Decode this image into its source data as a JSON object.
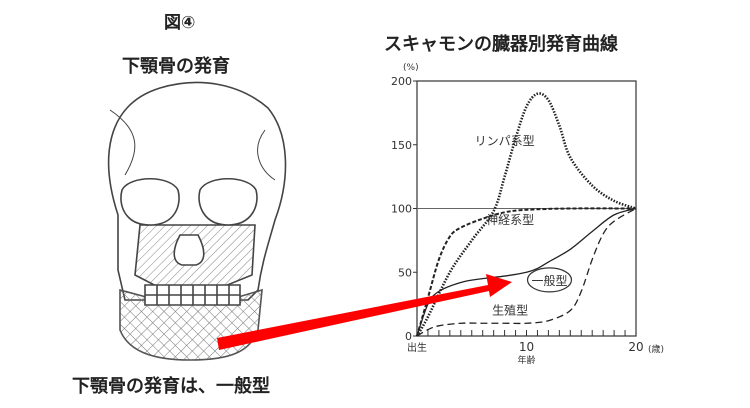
{
  "figure_label": "図④",
  "left_title": "下顎骨の発育",
  "caption": "下顎骨の発育は、一般型",
  "chart_data": {
    "type": "line",
    "title": "スキャモンの臓器別発育曲線",
    "xlabel": "年齢",
    "ylabel": "(%)",
    "x_unit": "(歳)",
    "xlim": [
      0,
      20
    ],
    "ylim": [
      0,
      200
    ],
    "x_tick_labels": [
      "出生",
      "10",
      "20"
    ],
    "y_tick_labels": [
      "0",
      "50",
      "100",
      "150",
      "200"
    ],
    "reference_line": 100,
    "series": [
      {
        "name": "リンパ系型",
        "style": "dotted",
        "x": [
          0,
          1,
          3,
          5,
          7,
          8,
          9,
          10,
          11,
          12,
          13,
          14,
          16,
          18,
          20
        ],
        "y": [
          0,
          15,
          50,
          75,
          98,
          125,
          155,
          180,
          190,
          185,
          165,
          140,
          118,
          106,
          100
        ]
      },
      {
        "name": "神経系型",
        "style": "dashed",
        "x": [
          0,
          1,
          2,
          3,
          4,
          6,
          8,
          10,
          14,
          20
        ],
        "y": [
          0,
          30,
          60,
          78,
          85,
          92,
          97,
          99,
          100,
          100
        ]
      },
      {
        "name": "一般型",
        "style": "solid",
        "x": [
          0,
          1,
          2,
          4,
          6,
          8,
          10,
          11,
          12,
          14,
          16,
          18,
          20
        ],
        "y": [
          0,
          25,
          35,
          42,
          45,
          47,
          50,
          53,
          58,
          68,
          82,
          95,
          100
        ],
        "highlighted": true
      },
      {
        "name": "生殖型",
        "style": "long-dashed",
        "x": [
          0,
          1,
          2,
          4,
          6,
          8,
          10,
          12,
          14,
          15,
          16,
          17,
          18,
          20
        ],
        "y": [
          0,
          5,
          8,
          10,
          10,
          10,
          10,
          12,
          20,
          35,
          60,
          80,
          90,
          100
        ]
      }
    ]
  },
  "colors": {
    "arrow": "#ff0000",
    "line": "#222222"
  }
}
